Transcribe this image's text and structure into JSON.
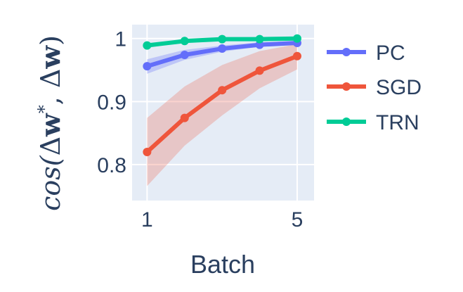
{
  "chart_data": {
    "type": "line",
    "x": [
      1,
      2,
      3,
      4,
      5
    ],
    "x_tick_labels": [
      "1",
      "5"
    ],
    "y_tick_labels": [
      "1",
      "0.9",
      "0.8"
    ],
    "xlabel": "Batch",
    "ylabel": {
      "pre": "cos(",
      "delta1": "Δ",
      "w1": "w",
      "star": "*",
      "sep": ", ",
      "delta2": "Δ",
      "w2": "w",
      "post": ")"
    },
    "xlim": [
      0.6,
      5.45
    ],
    "ylim": [
      0.743,
      1.022
    ],
    "grid": true,
    "legend_position": "right",
    "series": [
      {
        "name": "PC",
        "color": "#636efa",
        "band_color": "rgba(99,110,250,0.3)",
        "values": [
          0.956,
          0.974,
          0.984,
          0.99,
          0.993
        ],
        "lower": [
          0.944,
          0.966,
          0.979,
          0.987,
          0.99
        ],
        "upper": [
          0.967,
          0.982,
          0.989,
          0.994,
          0.996
        ]
      },
      {
        "name": "SGD",
        "color": "#ef553b",
        "band_color": "rgba(239,85,59,0.25)",
        "values": [
          0.82,
          0.874,
          0.918,
          0.949,
          0.972
        ],
        "lower": [
          0.766,
          0.83,
          0.878,
          0.921,
          0.951
        ],
        "upper": [
          0.874,
          0.924,
          0.958,
          0.98,
          0.991
        ]
      },
      {
        "name": "TRN",
        "color": "#00cc96",
        "band_color": "rgba(0,204,150,0.25)",
        "values": [
          0.989,
          0.996,
          0.999,
          0.999,
          1.0
        ],
        "lower": [
          0.985,
          0.994,
          0.997,
          0.998,
          0.999
        ],
        "upper": [
          0.993,
          0.998,
          1.0,
          1.0,
          1.001
        ]
      }
    ]
  }
}
